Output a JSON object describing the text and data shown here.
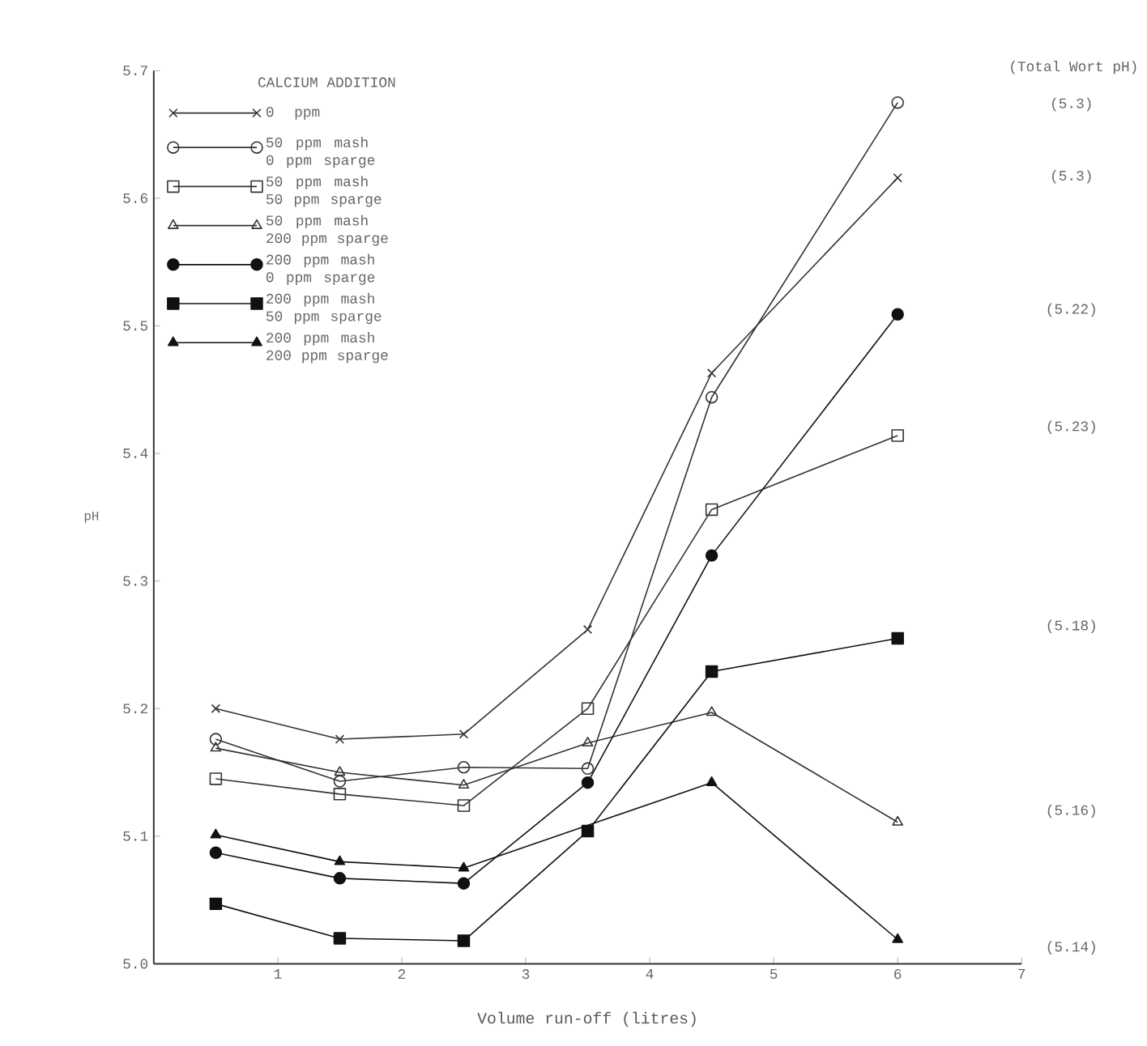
{
  "chart_data": {
    "type": "line",
    "xlabel": "Volume run-off (litres)",
    "ylabel": "pH",
    "legend_title": "CALCIUM ADDITION",
    "x": [
      0.5,
      1.5,
      2.5,
      3.5,
      4.5,
      6
    ],
    "xlim": [
      0,
      7
    ],
    "xticks": [
      1,
      2,
      3,
      4,
      5,
      6,
      7
    ],
    "ylim": [
      5.0,
      5.7
    ],
    "yticks": [
      {
        "value": 5.0,
        "label": "5.0"
      },
      5.1,
      5.2,
      5.3,
      5.4,
      5.5,
      5.6,
      5.7
    ],
    "grid": false,
    "legend": "top left",
    "line_style": "solid",
    "series": [
      {
        "name": "0 ppm",
        "color": "#333333",
        "marker": "cross",
        "values": [
          5.2,
          5.176,
          5.18,
          5.262,
          5.463,
          5.616
        ]
      },
      {
        "name": "50 ppm mash 0 ppm sparge",
        "color": "#333333",
        "marker": "circle",
        "values": [
          5.176,
          5.143,
          5.154,
          5.153,
          5.444,
          5.675
        ]
      },
      {
        "name": "50 ppm mash 50 ppm sparge",
        "color": "#333333",
        "marker": "square",
        "values": [
          5.145,
          5.133,
          5.124,
          5.2,
          5.356,
          5.414
        ]
      },
      {
        "name": "50 ppm mash 200 ppm sparge",
        "color": "#333333",
        "marker": "triangle",
        "values": [
          5.169,
          5.15,
          5.14,
          5.173,
          5.197,
          5.111
        ]
      },
      {
        "name": "200 ppm mash 0 ppm sparge",
        "color": "#111111",
        "marker": "circle",
        "values": [
          5.087,
          5.067,
          5.063,
          5.142,
          5.32,
          5.509
        ]
      },
      {
        "name": "200 ppm mash 50 ppm sparge",
        "color": "#111111",
        "marker": "square",
        "values": [
          5.047,
          5.02,
          5.018,
          5.104,
          5.229,
          5.255
        ]
      },
      {
        "name": "200 ppm mash 200 ppm sparge",
        "color": "#111111",
        "marker": "triangle",
        "values": [
          5.101,
          5.08,
          5.075,
          null,
          5.142,
          5.019
        ]
      }
    ],
    "annotations": [
      "(Total Wort pH)",
      "(5.3)",
      "(5.3)",
      "(5.22)",
      "(5.23)",
      "(5.18)",
      "(5.16)",
      "(5.14)"
    ]
  }
}
